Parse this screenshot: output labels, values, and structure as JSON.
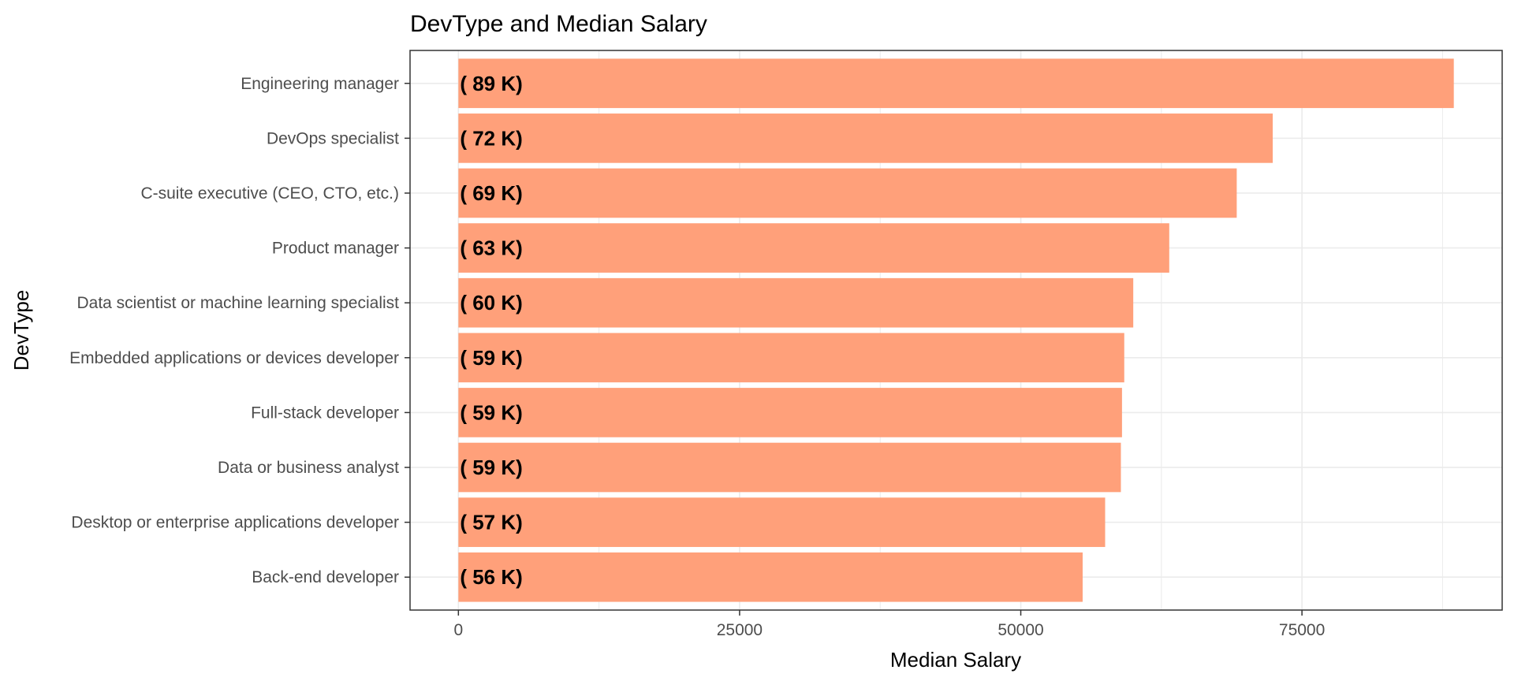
{
  "chart_data": {
    "type": "bar",
    "orientation": "horizontal",
    "title": "DevType and Median Salary",
    "xlabel": "Median Salary",
    "ylabel": "DevType",
    "categories": [
      "Engineering manager",
      "DevOps specialist",
      "C-suite executive (CEO, CTO, etc.)",
      "Product manager",
      "Data scientist or machine learning specialist",
      "Embedded applications or devices developer",
      "Full-stack developer",
      "Data or business analyst",
      "Desktop or enterprise applications developer",
      "Back-end developer"
    ],
    "values": [
      88500,
      72400,
      69200,
      63200,
      60000,
      59200,
      59000,
      58900,
      57500,
      55500
    ],
    "data_labels": [
      "( 89 K)",
      "( 72 K)",
      "( 69 K)",
      "( 63 K)",
      "( 60 K)",
      "( 59 K)",
      "( 59 K)",
      "( 59 K)",
      "( 57 K)",
      "( 56 K)"
    ],
    "xlim": [
      -4300,
      92800
    ],
    "xticks": [
      0,
      25000,
      50000,
      75000
    ],
    "xtick_labels": [
      "0",
      "25000",
      "50000",
      "75000"
    ],
    "grid": true,
    "legend": "none",
    "bar_color": "#FFA07A",
    "panel_border_color": "#333333",
    "grid_color": "#ebebeb"
  }
}
